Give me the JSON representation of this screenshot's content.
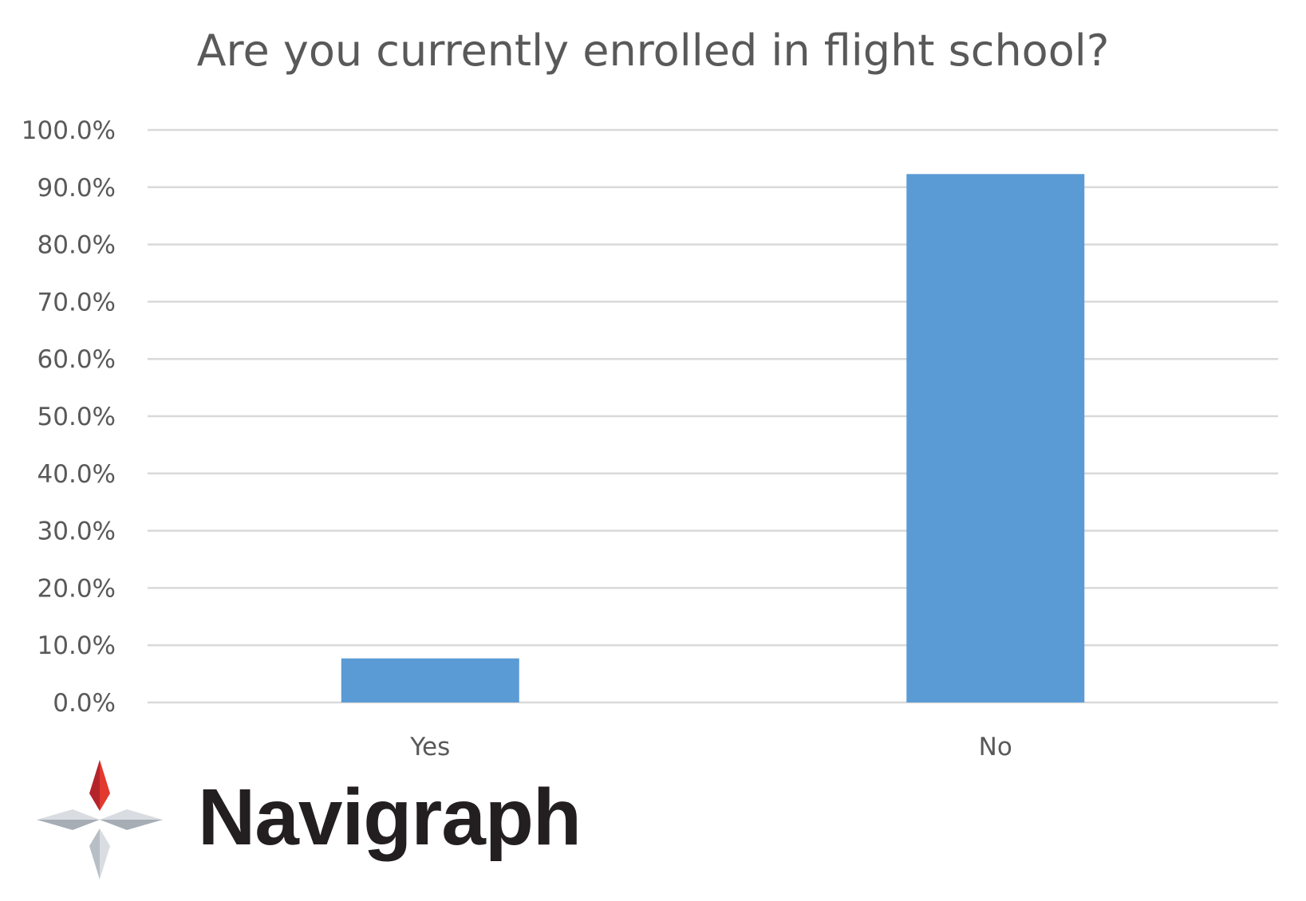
{
  "chart_data": {
    "type": "bar",
    "title": "Are you currently enrolled in flight school?",
    "categories": [
      "Yes",
      "No"
    ],
    "values": [
      7.7,
      92.3
    ],
    "y_ticks": [
      "0.0%",
      "10.0%",
      "20.0%",
      "30.0%",
      "40.0%",
      "50.0%",
      "60.0%",
      "70.0%",
      "80.0%",
      "90.0%",
      "100.0%"
    ],
    "ylim": [
      0,
      100
    ],
    "grid": true,
    "bar_color": "#5b9bd5"
  },
  "logo": {
    "text": "Navigraph"
  }
}
